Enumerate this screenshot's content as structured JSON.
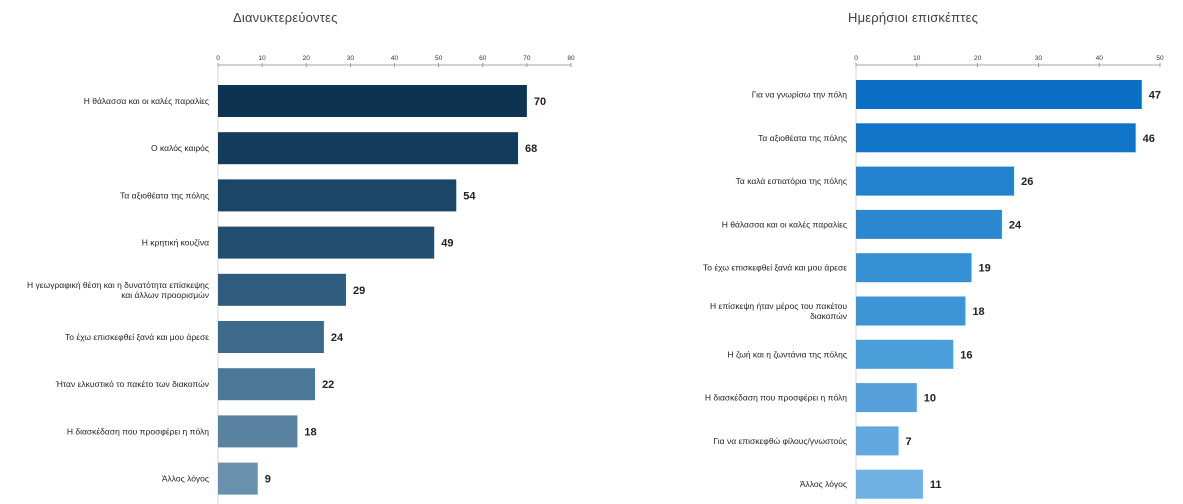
{
  "chart_data": [
    {
      "type": "bar",
      "orientation": "horizontal",
      "title": "Διανυκτερεύοντες",
      "xlim": [
        0,
        80
      ],
      "ticks": [
        "0",
        "10",
        "20",
        "30",
        "40",
        "50",
        "60",
        "70",
        "80"
      ],
      "axis_position": "top",
      "grid": false,
      "categories": [
        "Η θάλασσα και οι καλές παραλίες",
        "Ο καλός καιρός",
        "Τα αξιοθέατα της πόλης",
        "Η κρητική κουζίνα",
        "Η γεωγραφική θέση και η δυνατότητα επίσκεψης και άλλων προορισμών",
        "Το έχω επισκεφθεί ξανά και μου άρεσε",
        "Ήταν ελκυστικό το πακέτο των διακοπών",
        "Η διασκέδαση που προσφέρει η πόλη",
        "Άλλος λόγος"
      ],
      "values": [
        70,
        68,
        54,
        49,
        29,
        24,
        22,
        18,
        9
      ],
      "colors": [
        "#0e3350",
        "#133b5c",
        "#1b4667",
        "#234e6f",
        "#2f5c7e",
        "#3d6a8a",
        "#4b7896",
        "#5882a0",
        "#6990ac"
      ]
    },
    {
      "type": "bar",
      "orientation": "horizontal",
      "title": "Ημερήσιοι επισκέπτες",
      "xlim": [
        0,
        50
      ],
      "ticks": [
        "0",
        "10",
        "20",
        "30",
        "40",
        "50"
      ],
      "axis_position": "top",
      "grid": false,
      "categories": [
        "Για να γνωρίσω την πόλη",
        "Τα αξιοθέατα της πόλης",
        "Τα καλά εστιατόρια της πόλης",
        "Η θάλασσα και οι καλές παραλίες",
        "Το έχω επισκεφθεί ξανά και μου άρεσε",
        "Η επίσκεψη ήταν μέρος του πακέτου διακοπών",
        "Η ζωή και η ζωντάνια της πόλης",
        "Η διασκέδαση που προσφέρει η πόλη",
        "Για να επισκεφθώ φίλους/γνωστούς",
        "Άλλος λόγος"
      ],
      "values": [
        47,
        46,
        26,
        24,
        19,
        18,
        16,
        10,
        7,
        11
      ],
      "colors": [
        "#0a6ec4",
        "#1075c8",
        "#2382cd",
        "#2b88d0",
        "#3590d3",
        "#3d95d6",
        "#4a9ed9",
        "#559fdb",
        "#62a8de",
        "#6fb1e2"
      ]
    }
  ]
}
